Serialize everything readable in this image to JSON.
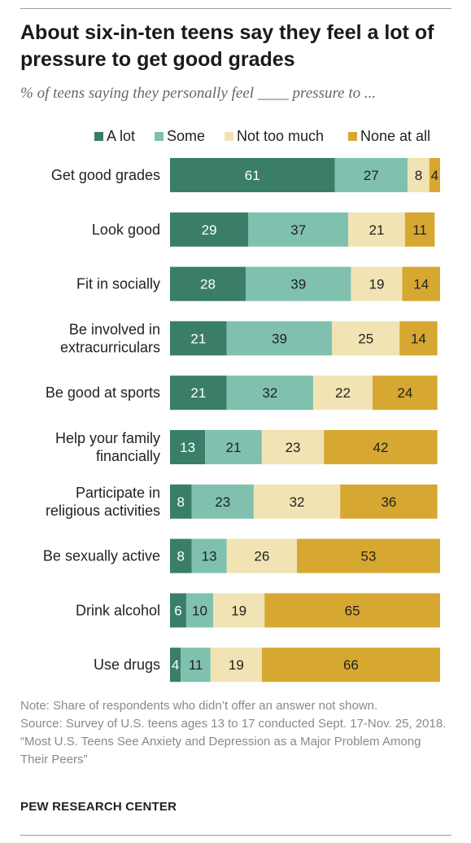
{
  "title": "About six-in-ten teens say they feel a lot of pressure to get good grades",
  "subtitle": "% of teens saying they personally feel ____ pressure to ...",
  "colors": {
    "a_lot": "#3a7d69",
    "some": "#7fc1ae",
    "not_too_much": "#f1e3b3",
    "none_at_all": "#d6a831"
  },
  "chart_data": {
    "type": "bar",
    "orientation": "horizontal",
    "stacked": true,
    "legend_position": "top",
    "categories": [
      [
        "Get good grades"
      ],
      [
        "Look good"
      ],
      [
        "Fit in socially"
      ],
      [
        "Be involved in",
        "extracurriculars"
      ],
      [
        "Be good at sports"
      ],
      [
        "Help your family",
        "financially"
      ],
      [
        "Participate in",
        "religious activities"
      ],
      [
        "Be sexually active"
      ],
      [
        "Drink alcohol"
      ],
      [
        "Use drugs"
      ]
    ],
    "series": [
      {
        "name": "A lot",
        "values": [
          61,
          29,
          28,
          21,
          21,
          13,
          8,
          8,
          6,
          4
        ]
      },
      {
        "name": "Some",
        "values": [
          27,
          37,
          39,
          39,
          32,
          21,
          23,
          13,
          10,
          11
        ]
      },
      {
        "name": "Not too much",
        "values": [
          8,
          21,
          19,
          25,
          22,
          23,
          32,
          26,
          19,
          19
        ]
      },
      {
        "name": "None at all",
        "values": [
          4,
          11,
          14,
          14,
          24,
          42,
          36,
          53,
          65,
          66
        ]
      }
    ]
  },
  "notes": [
    "Note: Share of respondents who didn’t offer an answer not shown.",
    "Source: Survey of U.S. teens ages 13 to 17 conducted Sept. 17-Nov. 25, 2018.",
    "“Most U.S. Teens See Anxiety and Depression as a Major Problem Among Their Peers”"
  ],
  "brand": "PEW RESEARCH CENTER"
}
